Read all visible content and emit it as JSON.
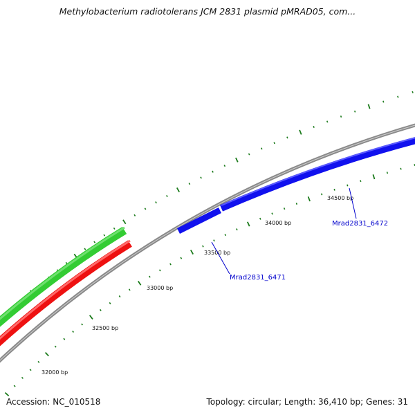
{
  "title": "Methylobacterium radiotolerans JCM 2831 plasmid pMRAD05, com...",
  "footer": {
    "accession": "Accession: NC_010518",
    "summary": "Topology: circular; Length: 36,410 bp; Genes: 31"
  },
  "ruler": {
    "labels": [
      "32000 bp",
      "32500 bp",
      "33000 bp",
      "33500 bp",
      "34000 bp",
      "34500 bp"
    ]
  },
  "genes": {
    "labels": [
      "Mrad2831_6471",
      "Mrad2831_6472"
    ]
  },
  "colors": {
    "backbone": "#888888",
    "forward_feature": "#33cc33",
    "reverse_feature": "#ee1111",
    "gene": "#1111ee",
    "tick": "#1a7a1a",
    "label_line": "#0000cc",
    "background": "#ffffff"
  }
}
